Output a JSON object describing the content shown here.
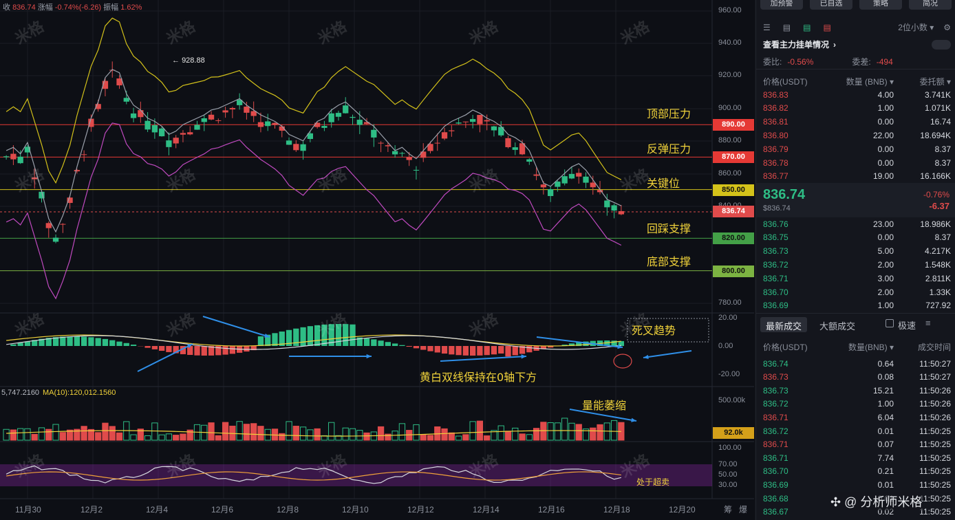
{
  "header": {
    "close_label": "收",
    "close_value": "836.74",
    "change_label": "涨幅",
    "change_value": "-0.74%(-6.26)",
    "amplitude_label": "振幅",
    "amplitude_value": "1.62%"
  },
  "volume_header": {
    "vol_value": "5,747.2160",
    "ma_label": "MA(10):120,012.1560"
  },
  "price_axis": [
    "960.00",
    "940.00",
    "920.00",
    "900.00",
    "880.00",
    "860.00",
    "840.00",
    "780.00"
  ],
  "macd_axis": [
    "20.00",
    "0.00",
    "-20.00"
  ],
  "volume_axis": [
    "500.00k"
  ],
  "rsi_axis": [
    "100.00",
    "70.00",
    "50.00",
    "30.00"
  ],
  "dates": [
    "11月30",
    "12月2",
    "12月4",
    "12月6",
    "12月8",
    "12月10",
    "12月12",
    "12月14",
    "12月16",
    "12月18",
    "12月20"
  ],
  "bottom_right_labels": [
    "筹",
    "爆"
  ],
  "high_marker": "928.88",
  "levels": [
    {
      "name": "顶部压力",
      "price": "890.00",
      "color": "#e53935"
    },
    {
      "name": "反弹压力",
      "price": "870.00",
      "color": "#e53935"
    },
    {
      "name": "关键位",
      "price": "850.00",
      "color": "#d4c21a"
    },
    {
      "name": "回踩支撑",
      "price": "820.00",
      "color": "#43a047"
    },
    {
      "name": "底部支撑",
      "price": "800.00",
      "color": "#7cb342"
    }
  ],
  "current_price_tag": "836.74",
  "volume_tag": "92.0k",
  "annotations": {
    "dead_cross": "死叉趋势",
    "macd_note": "黄白双线保持在0轴下方",
    "volume_note": "量能萎缩",
    "rsi_note": "处于超卖"
  },
  "watermark_text": "米格",
  "sidebar": {
    "top_buttons": [
      "加预警",
      "已自选",
      "策略",
      "简况"
    ],
    "precision": "2位小数",
    "view_orders": "查看主力挂单情况",
    "ratio_label": "委比:",
    "ratio_value": "-0.56%",
    "diff_label": "委差:",
    "diff_value": "-494",
    "book_headers": [
      "价格(USDT)",
      "数量 (BNB)",
      "委托额"
    ],
    "asks": [
      [
        "836.83",
        "4.00",
        "3.741K"
      ],
      [
        "836.82",
        "1.00",
        "1.071K"
      ],
      [
        "836.81",
        "0.00",
        "16.74"
      ],
      [
        "836.80",
        "22.00",
        "18.694K"
      ],
      [
        "836.79",
        "0.00",
        "8.37"
      ],
      [
        "836.78",
        "0.00",
        "8.37"
      ],
      [
        "836.77",
        "19.00",
        "16.166K"
      ]
    ],
    "last_price": "836.74",
    "last_price_sub": "$836.74",
    "last_change_pct": "-0.76%",
    "last_change": "-6.37",
    "bids": [
      [
        "836.76",
        "23.00",
        "18.986K"
      ],
      [
        "836.75",
        "0.00",
        "8.37"
      ],
      [
        "836.73",
        "5.00",
        "4.217K"
      ],
      [
        "836.72",
        "2.00",
        "1.548K"
      ],
      [
        "836.71",
        "3.00",
        "2.811K"
      ],
      [
        "836.70",
        "2.00",
        "1.33K"
      ],
      [
        "836.69",
        "1.00",
        "727.92"
      ]
    ],
    "trade_tabs": [
      "最新成交",
      "大额成交"
    ],
    "speed_label": "极速",
    "trade_headers": [
      "价格(USDT)",
      "数量(BNB)",
      "成交时间"
    ],
    "trades": [
      [
        "836.74",
        "0.64",
        "11:50:27",
        "green"
      ],
      [
        "836.73",
        "0.08",
        "11:50:27",
        "red"
      ],
      [
        "836.73",
        "15.21",
        "11:50:26",
        "green"
      ],
      [
        "836.72",
        "1.00",
        "11:50:26",
        "green"
      ],
      [
        "836.71",
        "6.04",
        "11:50:26",
        "red"
      ],
      [
        "836.72",
        "0.01",
        "11:50:25",
        "green"
      ],
      [
        "836.71",
        "0.07",
        "11:50:25",
        "red"
      ],
      [
        "836.71",
        "7.74",
        "11:50:25",
        "green"
      ],
      [
        "836.70",
        "0.21",
        "11:50:25",
        "green"
      ],
      [
        "836.69",
        "0.01",
        "11:50:25",
        "green"
      ],
      [
        "836.68",
        "0.01",
        "11:50:25",
        "green"
      ],
      [
        "836.67",
        "0.02",
        "11:50:25",
        "green"
      ]
    ],
    "footer_brand": "@ 分析师米格"
  }
}
